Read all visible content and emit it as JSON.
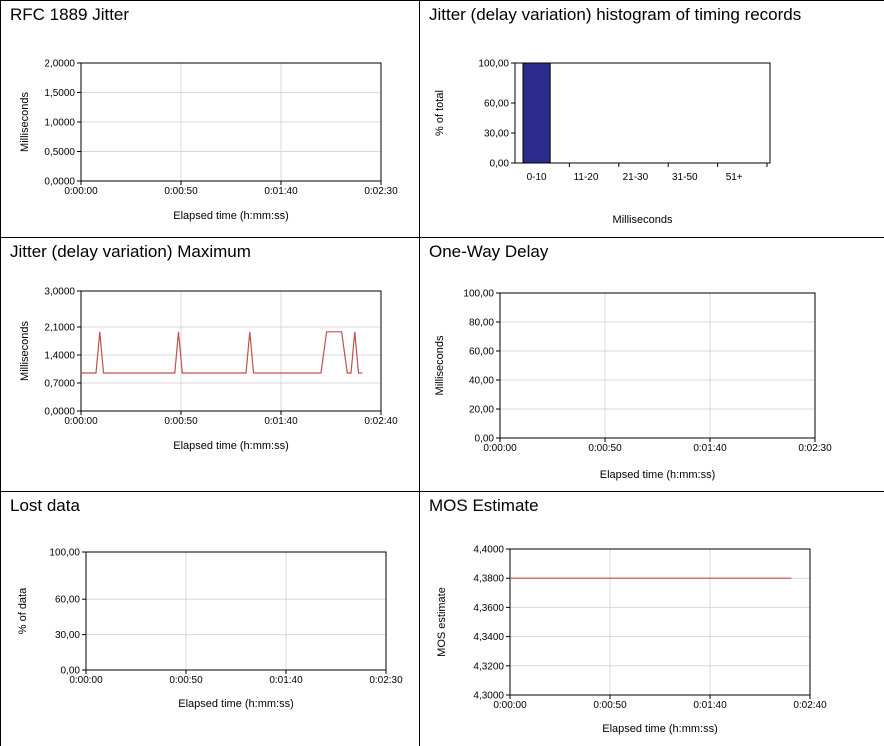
{
  "chart_data": [
    {
      "type": "line",
      "title": "RFC 1889 Jitter",
      "xlabel": "Elapsed time (h:mm:ss)",
      "ylabel": "Milliseconds",
      "x_ticks": [
        "0:00:00",
        "0:00:50",
        "0:01:40",
        "0:02:30"
      ],
      "xlim": [
        0,
        150
      ],
      "y_ticks": [
        "0,0000",
        "0,5000",
        "1,0000",
        "1,5000",
        "2,0000"
      ],
      "y_tick_values": [
        0,
        0.5,
        1.0,
        1.5,
        2.0
      ],
      "ylim": [
        0,
        2.0
      ],
      "grid": true,
      "series": []
    },
    {
      "type": "bar",
      "title": "Jitter (delay variation) histogram of timing records",
      "xlabel": "Milliseconds",
      "ylabel": "% of total",
      "categories": [
        "0-10",
        "11-20",
        "21-30",
        "31-50",
        "51+"
      ],
      "values": [
        100,
        0,
        0,
        0,
        0
      ],
      "y_ticks": [
        "0,00",
        "30,00",
        "60,00",
        "100,00"
      ],
      "y_tick_values": [
        0,
        30,
        60,
        100
      ],
      "ylim": [
        0,
        100
      ],
      "bar_color": "#2b2b8c",
      "grid": false
    },
    {
      "type": "line",
      "title": "Jitter (delay variation) Maximum",
      "xlabel": "Elapsed time (h:mm:ss)",
      "ylabel": "Milliseconds",
      "x_ticks": [
        "0:00:00",
        "0:00:50",
        "0:01:40",
        "0:02:40"
      ],
      "xlim": [
        0,
        160
      ],
      "y_ticks": [
        "0,0000",
        "0,7000",
        "1,4000",
        "2,1000",
        "3,0000"
      ],
      "y_tick_values": [
        0,
        0.7,
        1.4,
        2.1,
        3.0
      ],
      "ylim": [
        0,
        3.0
      ],
      "grid": true,
      "line_color": "#c0504d",
      "series": [
        {
          "x": [
            0,
            8,
            10,
            12,
            50,
            52,
            54,
            88,
            90,
            92,
            128,
            131,
            139,
            142,
            144,
            146,
            148,
            150
          ],
          "y": [
            0.95,
            0.95,
            1.98,
            0.95,
            0.95,
            1.98,
            0.95,
            0.95,
            1.98,
            0.95,
            0.95,
            1.98,
            1.98,
            0.95,
            0.95,
            1.98,
            0.95,
            0.95
          ]
        }
      ]
    },
    {
      "type": "line",
      "title": "One-Way Delay",
      "xlabel": "Elapsed time (h:mm:ss)",
      "ylabel": "Milliseconds",
      "x_ticks": [
        "0:00:00",
        "0:00:50",
        "0:01:40",
        "0:02:30"
      ],
      "xlim": [
        0,
        150
      ],
      "y_ticks": [
        "0,00",
        "20,00",
        "40,00",
        "60,00",
        "80,00",
        "100,00"
      ],
      "y_tick_values": [
        0,
        20,
        40,
        60,
        80,
        100
      ],
      "ylim": [
        0,
        100
      ],
      "grid": true,
      "series": []
    },
    {
      "type": "line",
      "title": "Lost data",
      "xlabel": "Elapsed time (h:mm:ss)",
      "ylabel": "% of data",
      "x_ticks": [
        "0:00:00",
        "0:00:50",
        "0:01:40",
        "0:02:30"
      ],
      "xlim": [
        0,
        150
      ],
      "y_ticks": [
        "0,00",
        "30,00",
        "60,00",
        "100,00"
      ],
      "y_tick_values": [
        0,
        30,
        60,
        100
      ],
      "ylim": [
        0,
        100
      ],
      "grid": true,
      "series": []
    },
    {
      "type": "line",
      "title": "MOS Estimate",
      "xlabel": "Elapsed time (h:mm:ss)",
      "ylabel": "MOS estimate",
      "x_ticks": [
        "0:00:00",
        "0:00:50",
        "0:01:40",
        "0:02:40"
      ],
      "xlim": [
        0,
        160
      ],
      "y_ticks": [
        "4,3000",
        "4,3200",
        "4,3400",
        "4,3600",
        "4,3800",
        "4,4000"
      ],
      "y_tick_values": [
        4.3,
        4.32,
        4.34,
        4.36,
        4.38,
        4.4
      ],
      "ylim": [
        4.3,
        4.4
      ],
      "grid": true,
      "line_color": "#c0504d",
      "series": [
        {
          "x": [
            0,
            150
          ],
          "y": [
            4.38,
            4.38
          ]
        }
      ]
    }
  ]
}
